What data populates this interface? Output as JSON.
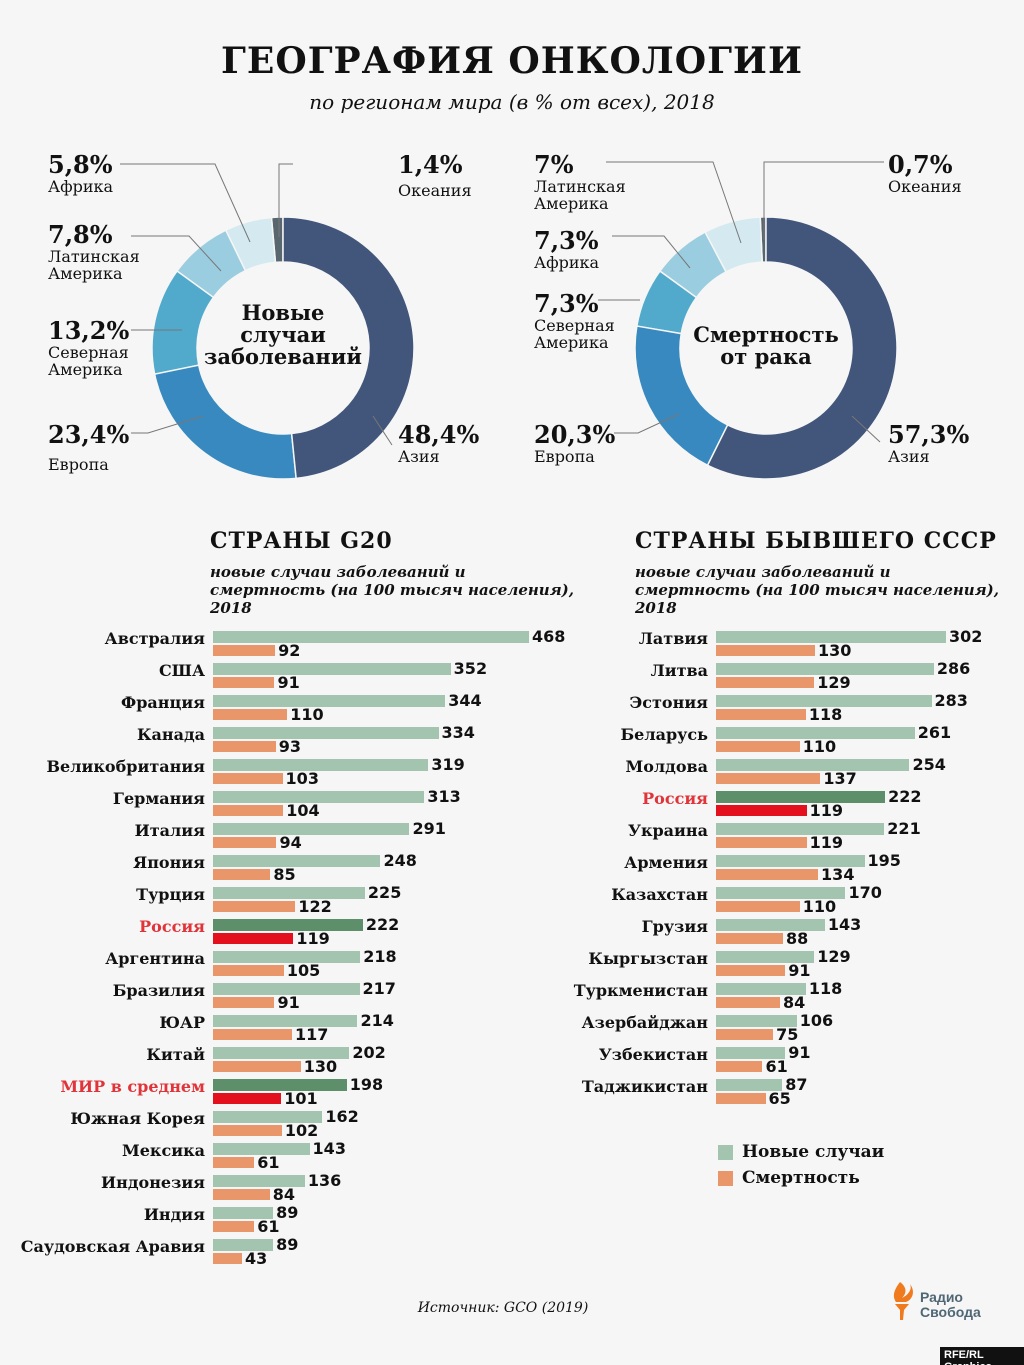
{
  "title": "ГЕОГРАФИЯ ОНКОЛОГИИ",
  "subtitle": "по регионам мира (в % от всех), 2018",
  "colors": {
    "new_cases": "#a3c4ae",
    "deaths": "#e8966a",
    "russia_new": "#5c8f6a",
    "russia_deaths": "#e3101e",
    "highlight_label": "#e0343a"
  },
  "chart_data": [
    {
      "type": "pie",
      "donut": true,
      "title": "Новые случаи заболеваний",
      "slices": [
        {
          "label": "Азия",
          "pct_label": "48,4%",
          "value": 48.4,
          "color": "#42557a"
        },
        {
          "label": "Европа",
          "pct_label": "23,4%",
          "value": 23.4,
          "color": "#3889bf"
        },
        {
          "label": "Северная Америка",
          "pct_label": "13,2%",
          "value": 13.2,
          "color": "#51a9cc"
        },
        {
          "label": "Латинская Америка",
          "pct_label": "7,8%",
          "value": 7.8,
          "color": "#9bcde0"
        },
        {
          "label": "Африка",
          "pct_label": "5,8%",
          "value": 5.8,
          "color": "#d4e9f0"
        },
        {
          "label": "Океания",
          "pct_label": "1,4%",
          "value": 1.4,
          "color": "#58666f"
        }
      ]
    },
    {
      "type": "pie",
      "donut": true,
      "title": "Смертность от рака",
      "slices": [
        {
          "label": "Азия",
          "pct_label": "57,3%",
          "value": 57.3,
          "color": "#42557a"
        },
        {
          "label": "Европа",
          "pct_label": "20,3%",
          "value": 20.3,
          "color": "#3889bf"
        },
        {
          "label": "Северная Америка",
          "pct_label": "7,3%",
          "value": 7.3,
          "color": "#51a9cc"
        },
        {
          "label": "Африка",
          "pct_label": "7,3%",
          "value": 7.3,
          "color": "#9bcde0"
        },
        {
          "label": "Латинская Америка",
          "pct_label": "7%",
          "value": 7,
          "color": "#d4e9f0"
        },
        {
          "label": "Океания",
          "pct_label": "0,7%",
          "value": 0.7,
          "color": "#58666f"
        }
      ]
    },
    {
      "type": "bar",
      "orientation": "horizontal",
      "title": "СТРАНЫ G20",
      "subtitle": "новые случаи заболеваний и смертность (на 100 тысяч населения), 2018",
      "categories": [
        "Австралия",
        "США",
        "Франция",
        "Канада",
        "Великобритания",
        "Германия",
        "Италия",
        "Япония",
        "Турция",
        "Россия",
        "Аргентина",
        "Бразилия",
        "ЮАР",
        "Китай",
        "МИР в среднем",
        "Южная Корея",
        "Мексика",
        "Индонезия",
        "Индия",
        "Саудовская Аравия"
      ],
      "highlighted": [
        "Россия",
        "МИР в среднем"
      ],
      "series": [
        {
          "name": "Новые случаи",
          "values": [
            468,
            352,
            344,
            334,
            319,
            313,
            291,
            248,
            225,
            222,
            218,
            217,
            214,
            202,
            198,
            162,
            143,
            136,
            89,
            89
          ]
        },
        {
          "name": "Смертность",
          "values": [
            92,
            91,
            110,
            93,
            103,
            104,
            94,
            85,
            122,
            119,
            105,
            91,
            117,
            130,
            101,
            102,
            61,
            84,
            61,
            43
          ]
        }
      ]
    },
    {
      "type": "bar",
      "orientation": "horizontal",
      "title": "СТРАНЫ БЫВШЕГО СССР",
      "subtitle": "новые случаи заболеваний и смертность (на 100 тысяч населения), 2018",
      "categories": [
        "Латвия",
        "Литва",
        "Эстония",
        "Беларусь",
        "Молдова",
        "Россия",
        "Украина",
        "Армения",
        "Казахстан",
        "Грузия",
        "Кыргызстан",
        "Туркменистан",
        "Азербайджан",
        "Узбекистан",
        "Таджикистан"
      ],
      "highlighted": [
        "Россия"
      ],
      "legend": "bottom-right",
      "series": [
        {
          "name": "Новые случаи",
          "values": [
            302,
            286,
            283,
            261,
            254,
            222,
            221,
            195,
            170,
            143,
            129,
            118,
            106,
            91,
            87
          ]
        },
        {
          "name": "Смертность",
          "values": [
            130,
            129,
            118,
            110,
            137,
            119,
            119,
            134,
            110,
            88,
            91,
            84,
            75,
            61,
            65
          ]
        }
      ]
    }
  ],
  "donut_titles": [
    [
      "Новые",
      "случаи",
      "заболеваний"
    ],
    [
      "Смертность",
      "от рака"
    ]
  ],
  "legend": {
    "new": "Новые случаи",
    "deaths": "Смертность"
  },
  "source": "Источник: GCO (2019)",
  "logo": {
    "line1": "Радио",
    "line2": "Свобода"
  },
  "credit": "RFE/RL Graphics"
}
